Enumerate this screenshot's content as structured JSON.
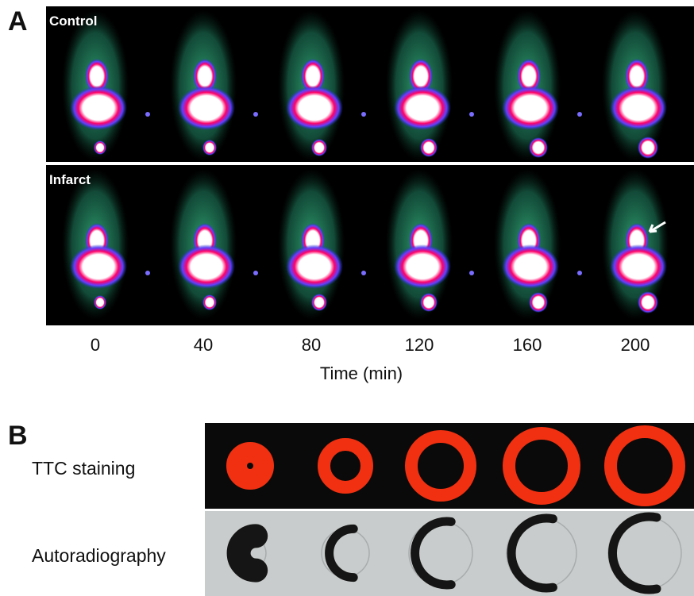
{
  "panel_a": {
    "label": "A",
    "rows": [
      "Control",
      "Infarct"
    ],
    "time_ticks": [
      "0",
      "40",
      "80",
      "120",
      "160",
      "200"
    ],
    "axis_label": "Time (min)"
  },
  "panel_b": {
    "label": "B",
    "rows": [
      "TTC staining",
      "Autoradiography"
    ]
  }
}
